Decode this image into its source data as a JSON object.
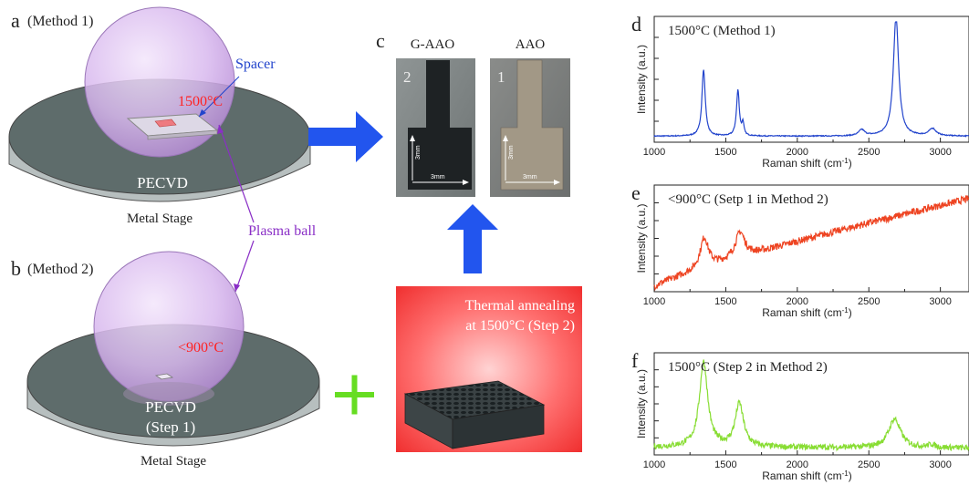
{
  "panel_a": {
    "letter": "a",
    "method": "(Method 1)",
    "spacer_label": "Spacer",
    "temp": "1500°C",
    "pecvd": "PECVD",
    "stage": "Metal Stage"
  },
  "plasma_label": "Plasma ball",
  "panel_b": {
    "letter": "b",
    "method": "(Method 2)",
    "temp": "<900°C",
    "pecvd": "PECVD",
    "step": "(Step 1)",
    "stage": "Metal Stage"
  },
  "panel_c": {
    "letter": "c",
    "gaao_label": "G-AAO",
    "aao_label": "AAO",
    "gaao_num": "2",
    "aao_num": "1",
    "dim": "3mm",
    "anneal_line1": "Thermal annealing",
    "anneal_line2": "at 1500°C (Step 2)"
  },
  "colors": {
    "method1": "#2244cc",
    "step1": "#ee4422",
    "step2": "#88dd33",
    "arrow": "#2255ee",
    "plus": "#66dd22",
    "plasma": "#c9a8e6",
    "stage": "#5b6b6a",
    "temp": "#ff2222",
    "annotation": "#8a2fc6"
  },
  "chart_data": [
    {
      "type": "line",
      "letter": "d",
      "title": "1500°C  (Method 1)",
      "xlabel": "Raman shift (cm-1)",
      "ylabel": "Intensity (a.u.)",
      "xlim": [
        1000,
        3200
      ],
      "xticks": [
        1000,
        1500,
        2000,
        2500,
        3000
      ],
      "ylim": [
        0,
        1
      ],
      "peaks": [
        {
          "x": 1345,
          "height": 0.55,
          "width": 14
        },
        {
          "x": 1585,
          "height": 0.38,
          "width": 12
        },
        {
          "x": 1620,
          "height": 0.1,
          "width": 8
        },
        {
          "x": 2450,
          "height": 0.05,
          "width": 25
        },
        {
          "x": 2690,
          "height": 1.0,
          "width": 22
        },
        {
          "x": 2945,
          "height": 0.06,
          "width": 30
        }
      ],
      "baseline_start": 0.05,
      "baseline_end": 0.05,
      "noise": 0.004
    },
    {
      "type": "line",
      "letter": "e",
      "title": "<900°C (Setp 1 in Method 2)",
      "xlabel": "Raman shift (cm-1)",
      "ylabel": "Intensity (a.u.)",
      "xlim": [
        1000,
        3200
      ],
      "xticks": [
        1000,
        1500,
        2000,
        2500,
        3000
      ],
      "ylim": [
        0,
        1
      ],
      "peaks": [
        {
          "x": 1350,
          "height": 0.3,
          "width": 35
        },
        {
          "x": 1600,
          "height": 0.25,
          "width": 40
        }
      ],
      "baseline_start": 0.05,
      "baseline_end": 0.92,
      "noise": 0.035
    },
    {
      "type": "line",
      "letter": "f",
      "title": "1500°C (Step 2 in Method 2)",
      "xlabel": "Raman shift (cm-1)",
      "ylabel": "Intensity (a.u.)",
      "xlim": [
        1000,
        3200
      ],
      "xticks": [
        1000,
        1500,
        2000,
        2500,
        3000
      ],
      "ylim": [
        0,
        1
      ],
      "peaks": [
        {
          "x": 1345,
          "height": 0.88,
          "width": 35
        },
        {
          "x": 1595,
          "height": 0.45,
          "width": 35
        },
        {
          "x": 2680,
          "height": 0.3,
          "width": 50
        },
        {
          "x": 2940,
          "height": 0.03,
          "width": 30
        }
      ],
      "baseline_start": 0.08,
      "baseline_end": 0.07,
      "noise": 0.03
    }
  ]
}
